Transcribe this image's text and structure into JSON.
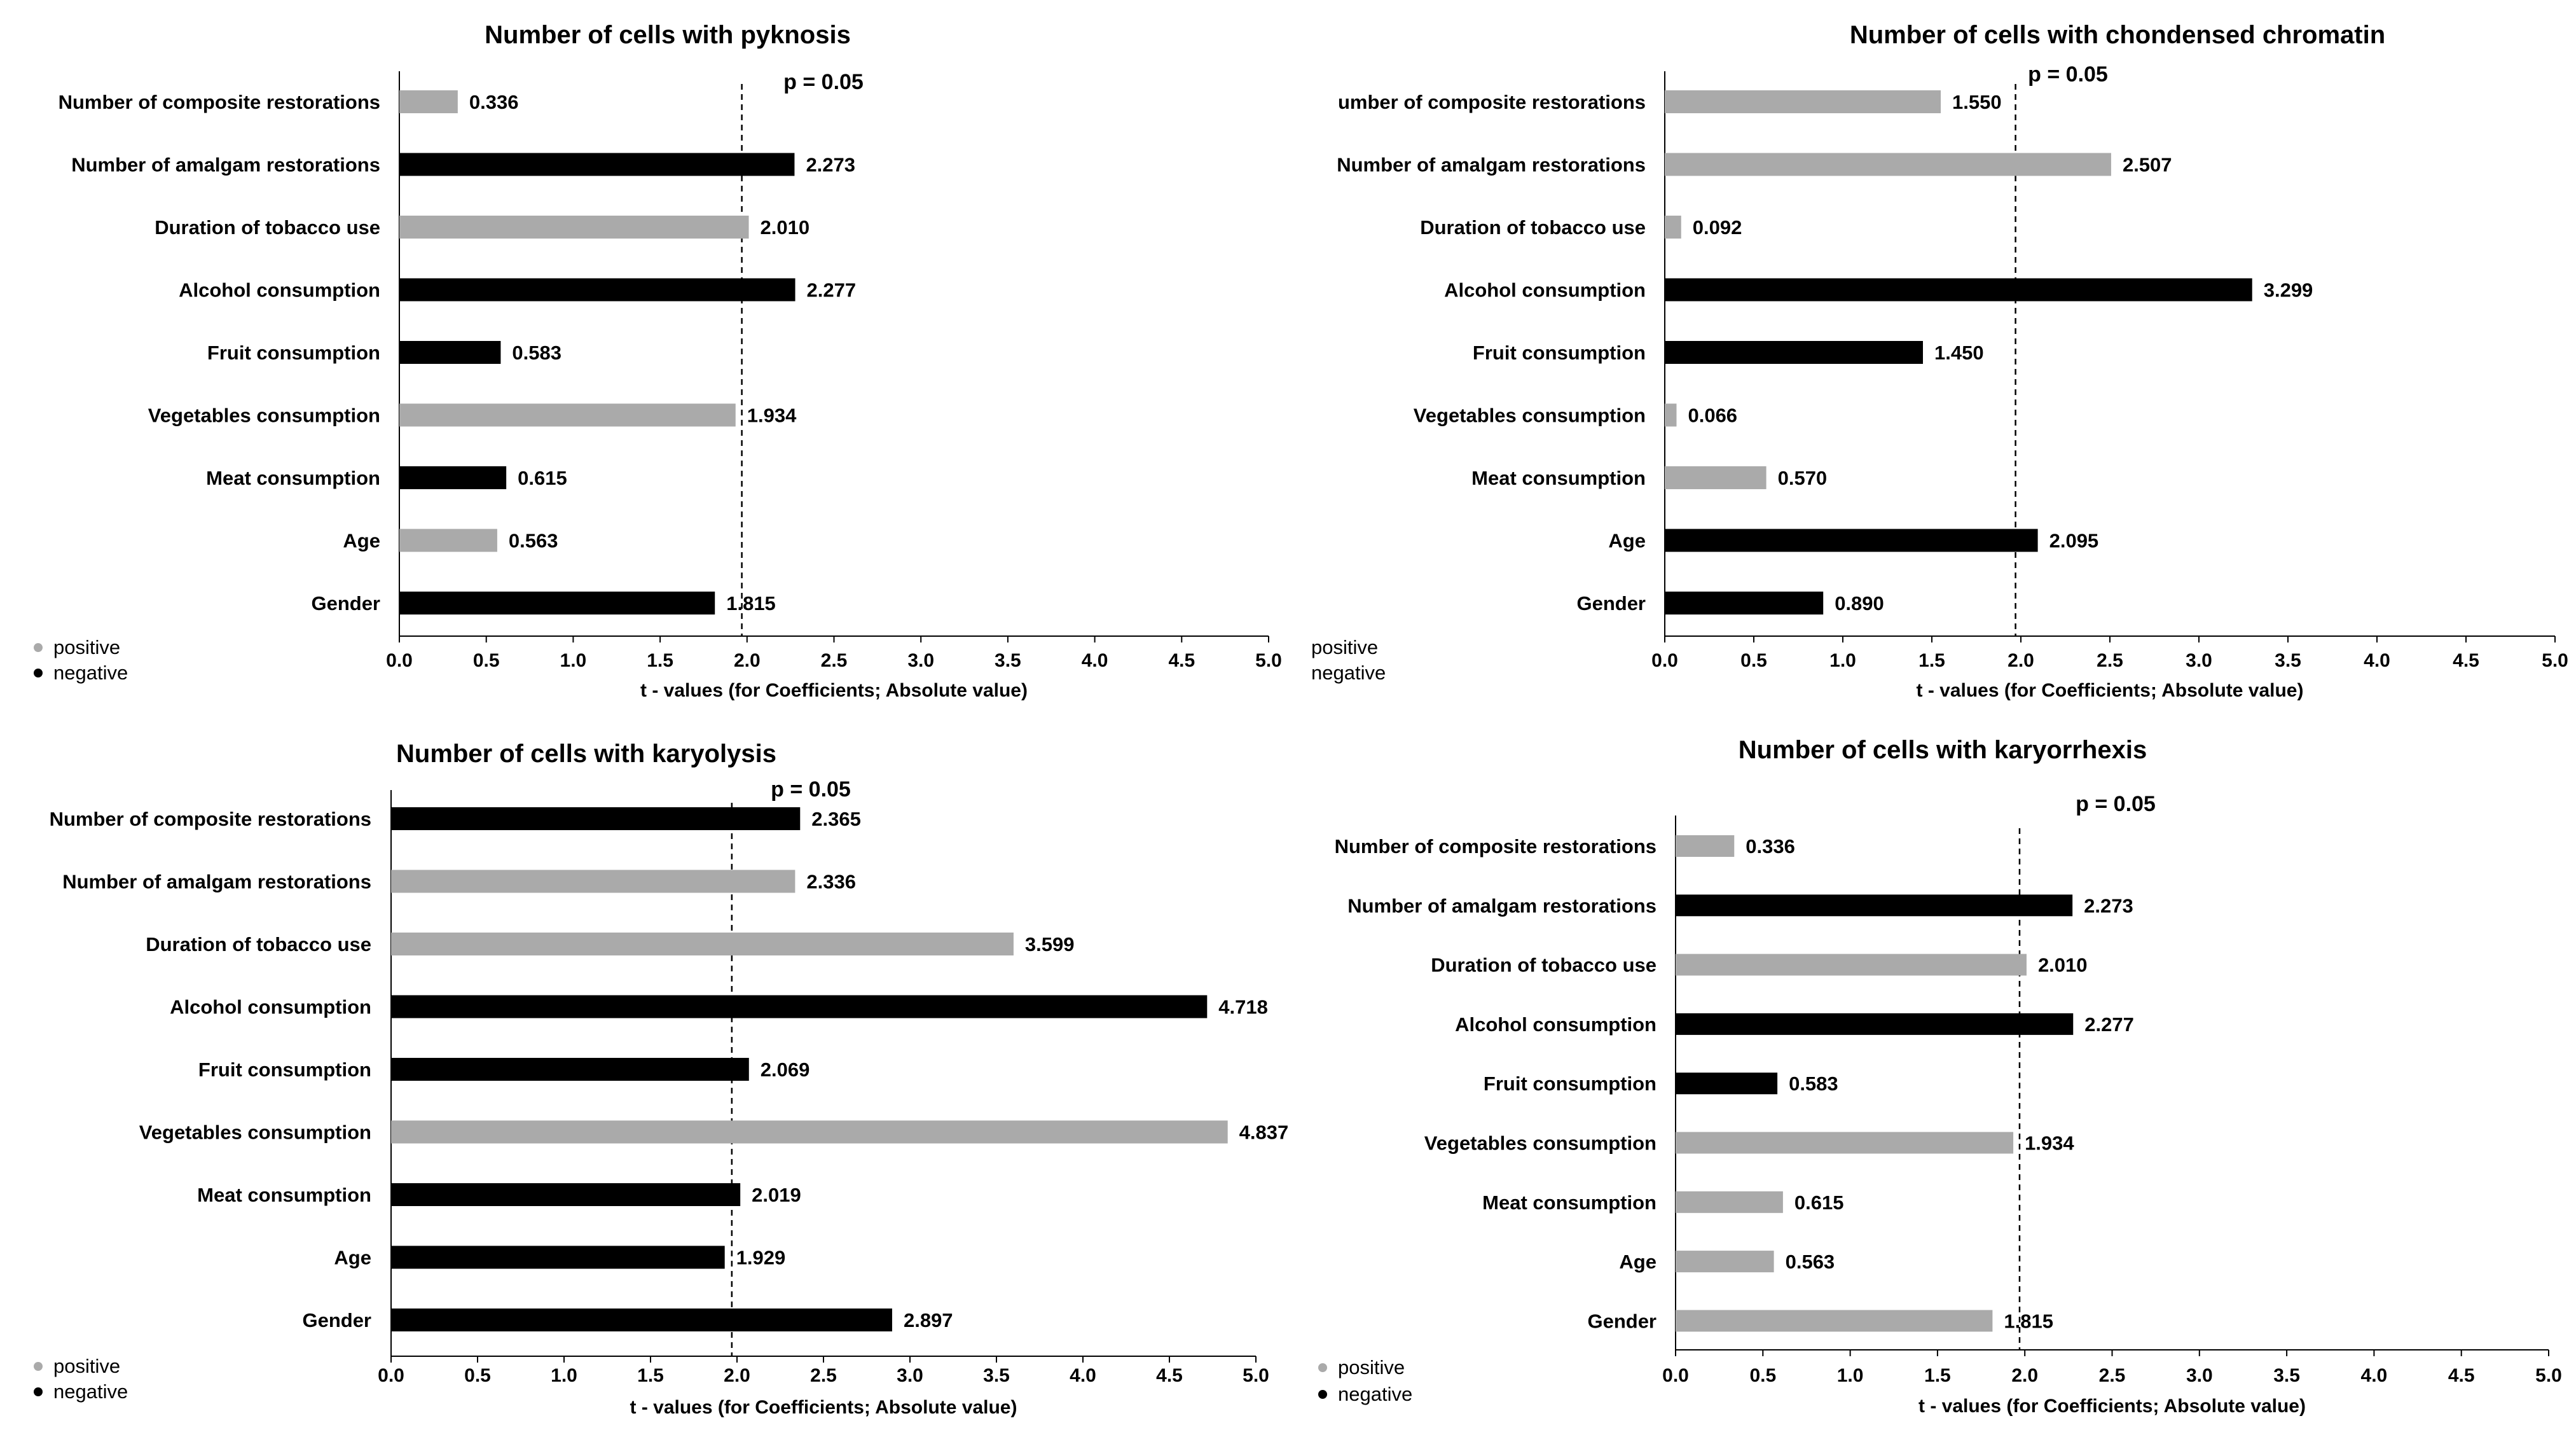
{
  "figure": {
    "colors": {
      "positive": "#aaaaaa",
      "negative": "#000000"
    },
    "legend_labels": {
      "positive": "positive",
      "negative": "negative"
    }
  },
  "chart_data": [
    {
      "type": "bar",
      "orientation": "horizontal",
      "title": "Number of cells with pyknosis",
      "xlabel": "t - values (for Coefficients; Absolute value)",
      "xlim": [
        0,
        5
      ],
      "xticks": [
        "0.0",
        "0.5",
        "1.0",
        "1.5",
        "2.0",
        "2.5",
        "3.0",
        "3.5",
        "4.0",
        "4.5",
        "5.0"
      ],
      "threshold": {
        "value": 1.97,
        "label": "p = 0.05"
      },
      "legend_markers": true,
      "categories": [
        "Number of composite restorations",
        "Number of amalgam restorations",
        "Duration of tobacco use",
        "Alcohol consumption",
        "Fruit consumption",
        "Vegetables consumption",
        "Meat consumption",
        "Age",
        "Gender"
      ],
      "values": [
        0.336,
        2.273,
        2.01,
        2.277,
        0.583,
        1.934,
        0.615,
        0.563,
        1.815
      ],
      "value_labels": [
        "0.336",
        "2.273",
        "2.010",
        "2.277",
        "0.583",
        "1.934",
        "0.615",
        "0.563",
        "1.815"
      ],
      "signs": [
        "positive",
        "negative",
        "positive",
        "negative",
        "negative",
        "positive",
        "negative",
        "positive",
        "negative"
      ]
    },
    {
      "type": "bar",
      "orientation": "horizontal",
      "title": "Number of cells with chondensed chromatin",
      "xlabel": "t - values (for Coefficients; Absolute value)",
      "xlim": [
        0,
        5
      ],
      "xticks": [
        "0.0",
        "0.5",
        "1.0",
        "1.5",
        "2.0",
        "2.5",
        "3.0",
        "3.5",
        "4.0",
        "4.5",
        "5.0"
      ],
      "threshold": {
        "value": 1.97,
        "label": "p = 0.05"
      },
      "legend_markers": false,
      "categories": [
        "umber of composite restorations",
        "Number of amalgam restorations",
        "Duration of tobacco use",
        "Alcohol consumption",
        "Fruit consumption",
        "Vegetables consumption",
        "Meat consumption",
        "Age",
        "Gender"
      ],
      "values": [
        1.55,
        2.507,
        0.092,
        3.299,
        1.45,
        0.066,
        0.57,
        2.095,
        0.89
      ],
      "value_labels": [
        "1.550",
        "2.507",
        "0.092",
        "3.299",
        "1.450",
        "0.066",
        "0.570",
        "2.095",
        "0.890"
      ],
      "signs": [
        "positive",
        "positive",
        "positive",
        "negative",
        "negative",
        "positive",
        "positive",
        "negative",
        "negative"
      ]
    },
    {
      "type": "bar",
      "orientation": "horizontal",
      "title": "Number of cells with karyolysis",
      "xlabel": "t - values (for Coefficients; Absolute value)",
      "xlim": [
        0,
        5
      ],
      "xticks": [
        "0.0",
        "0.5",
        "1.0",
        "1.5",
        "2.0",
        "2.5",
        "3.0",
        "3.5",
        "4.0",
        "4.5",
        "5.0"
      ],
      "threshold": {
        "value": 1.97,
        "label": "p = 0.05"
      },
      "legend_markers": true,
      "categories": [
        "Number of composite restorations",
        "Number of amalgam restorations",
        "Duration of tobacco use",
        "Alcohol consumption",
        "Fruit consumption",
        "Vegetables consumption",
        "Meat consumption",
        "Age",
        "Gender"
      ],
      "values": [
        2.365,
        2.336,
        3.599,
        4.718,
        2.069,
        4.837,
        2.019,
        1.929,
        2.897
      ],
      "value_labels": [
        "2.365",
        "2.336",
        "3.599",
        "4.718",
        "2.069",
        "4.837",
        "2.019",
        "1.929",
        "2.897"
      ],
      "signs": [
        "negative",
        "positive",
        "positive",
        "negative",
        "negative",
        "positive",
        "negative",
        "negative",
        "negative"
      ]
    },
    {
      "type": "bar",
      "orientation": "horizontal",
      "title": "Number of cells with karyorrhexis",
      "xlabel": "t - values (for Coefficients; Absolute value)",
      "xlim": [
        0,
        5
      ],
      "xticks": [
        "0.0",
        "0.5",
        "1.0",
        "1.5",
        "2.0",
        "2.5",
        "3.0",
        "3.5",
        "4.0",
        "4.5",
        "5.0"
      ],
      "threshold": {
        "value": 1.97,
        "label": "p = 0.05"
      },
      "legend_markers": true,
      "categories": [
        "Number of composite restorations",
        "Number of amalgam restorations",
        "Duration of tobacco use",
        "Alcohol consumption",
        "Fruit consumption",
        "Vegetables consumption",
        "Meat consumption",
        "Age",
        "Gender"
      ],
      "values": [
        0.336,
        2.273,
        2.01,
        2.277,
        0.583,
        1.934,
        0.615,
        0.563,
        1.815
      ],
      "value_labels": [
        "0.336",
        "2.273",
        "2.010",
        "2.277",
        "0.583",
        "1.934",
        "0.615",
        "0.563",
        "1.815"
      ],
      "signs": [
        "positive",
        "negative",
        "positive",
        "negative",
        "negative",
        "positive",
        "positive",
        "positive",
        "positive"
      ]
    }
  ]
}
